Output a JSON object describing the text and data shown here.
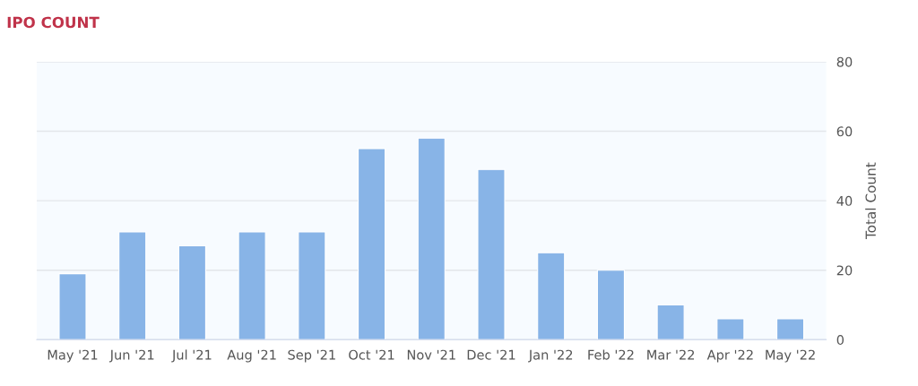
{
  "chart_data": {
    "type": "bar",
    "title": "IPO COUNT",
    "ylabel": "Total Count",
    "categories": [
      "May '21",
      "Jun '21",
      "Jul '21",
      "Aug '21",
      "Sep '21",
      "Oct '21",
      "Nov '21",
      "Dec '21",
      "Jan '22",
      "Feb '22",
      "Mar '22",
      "Apr '22",
      "May '22"
    ],
    "values": [
      19,
      31,
      27,
      31,
      31,
      55,
      58,
      49,
      25,
      20,
      10,
      6,
      6
    ],
    "color": "#88b4e7",
    "ylim": [
      0,
      80
    ],
    "yticks": [
      0,
      20,
      40,
      60,
      80
    ],
    "grid": "y"
  }
}
